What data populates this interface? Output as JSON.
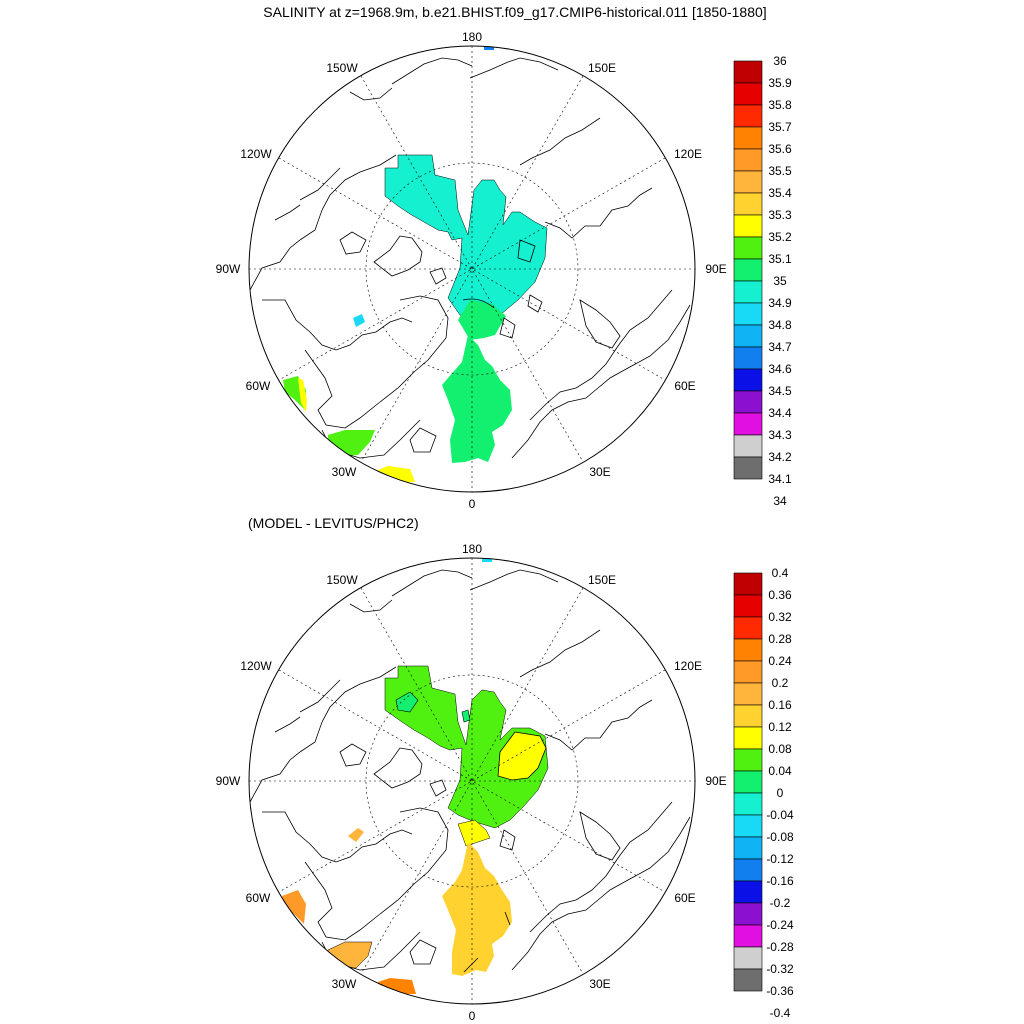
{
  "title": "SALINITY at z=1968.9m, b.e21.BHIST.f09_g17.CMIP6-historical.011 [1850-1880]",
  "subtitle": "(MODEL - LEVITUS/PHC2)",
  "lon_labels": {
    "top": "180",
    "bottom": "0",
    "w150": "150W",
    "e150": "150E",
    "w120": "120W",
    "e120": "120E",
    "w90": "90W",
    "e90": "90E",
    "w60": "60W",
    "e60": "60E",
    "w30": "30W",
    "e30": "30E"
  },
  "colors": {
    "c0": "#6e6e6e",
    "c1": "#cfcfcf",
    "c2": "#e10fe1",
    "c3": "#8c10cf",
    "c4": "#0a10e6",
    "c5": "#1180ee",
    "c6": "#10b4f4",
    "c7": "#18daf6",
    "c8": "#14f0d0",
    "c9": "#13f070",
    "c10": "#50f010",
    "c11": "#ffff00",
    "c12": "#ffd230",
    "c13": "#ffb43c",
    "c14": "#ff9a28",
    "c15": "#ff8200",
    "c16": "#ff2a00",
    "c17": "#e60000",
    "c18": "#c00000"
  },
  "colorbar_top": {
    "labels": [
      "36",
      "35.9",
      "35.8",
      "35.7",
      "35.6",
      "35.5",
      "35.4",
      "35.3",
      "35.2",
      "35.1",
      "35",
      "34.9",
      "34.8",
      "34.7",
      "34.6",
      "34.5",
      "34.4",
      "34.3",
      "34.2",
      "34.1",
      "34"
    ]
  },
  "colorbar_bottom": {
    "labels": [
      "0.4",
      "0.36",
      "0.32",
      "0.28",
      "0.24",
      "0.2",
      "0.16",
      "0.12",
      "0.08",
      "0.04",
      "0",
      "-0.04",
      "-0.08",
      "-0.12",
      "-0.16",
      "-0.2",
      "-0.24",
      "-0.28",
      "-0.32",
      "-0.36",
      "-0.4"
    ]
  }
}
